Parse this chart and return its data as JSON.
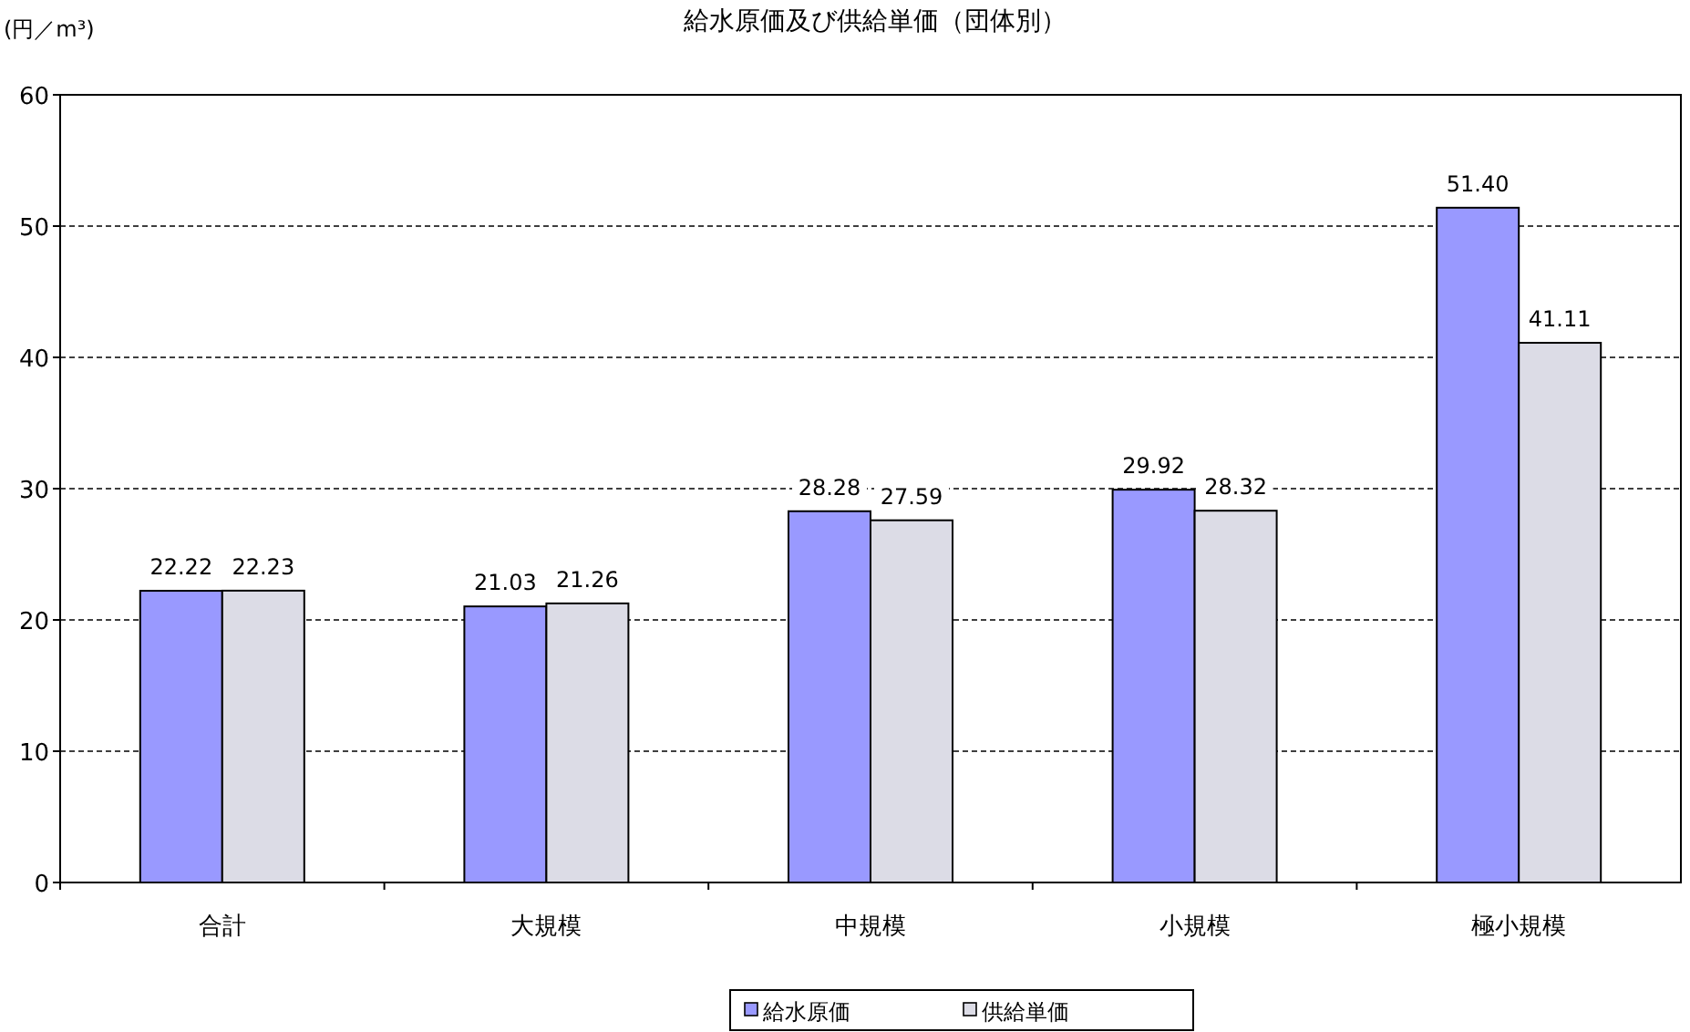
{
  "chart_data": {
    "type": "bar",
    "title": "給水原価及び供給単価（団体別）",
    "ylabel": "(円／m³)",
    "categories": [
      "合計",
      "大規模",
      "中規模",
      "小規模",
      "極小規模"
    ],
    "series": [
      {
        "name": "給水原価",
        "color": "#9999ff",
        "values": [
          22.22,
          21.03,
          28.28,
          29.92,
          51.4
        ],
        "value_labels": [
          "22.22",
          "21.03",
          "28.28",
          "29.92",
          "51.40"
        ]
      },
      {
        "name": "供給単価",
        "color": "#dcdce6",
        "values": [
          22.23,
          21.26,
          27.59,
          28.32,
          41.11
        ],
        "value_labels": [
          "22.23",
          "21.26",
          "27.59",
          "28.32",
          "41.11"
        ]
      }
    ],
    "ylim": [
      0,
      60
    ],
    "yticks": [
      0,
      10,
      20,
      30,
      40,
      50,
      60
    ],
    "grid": "y",
    "legend": "bottom"
  }
}
